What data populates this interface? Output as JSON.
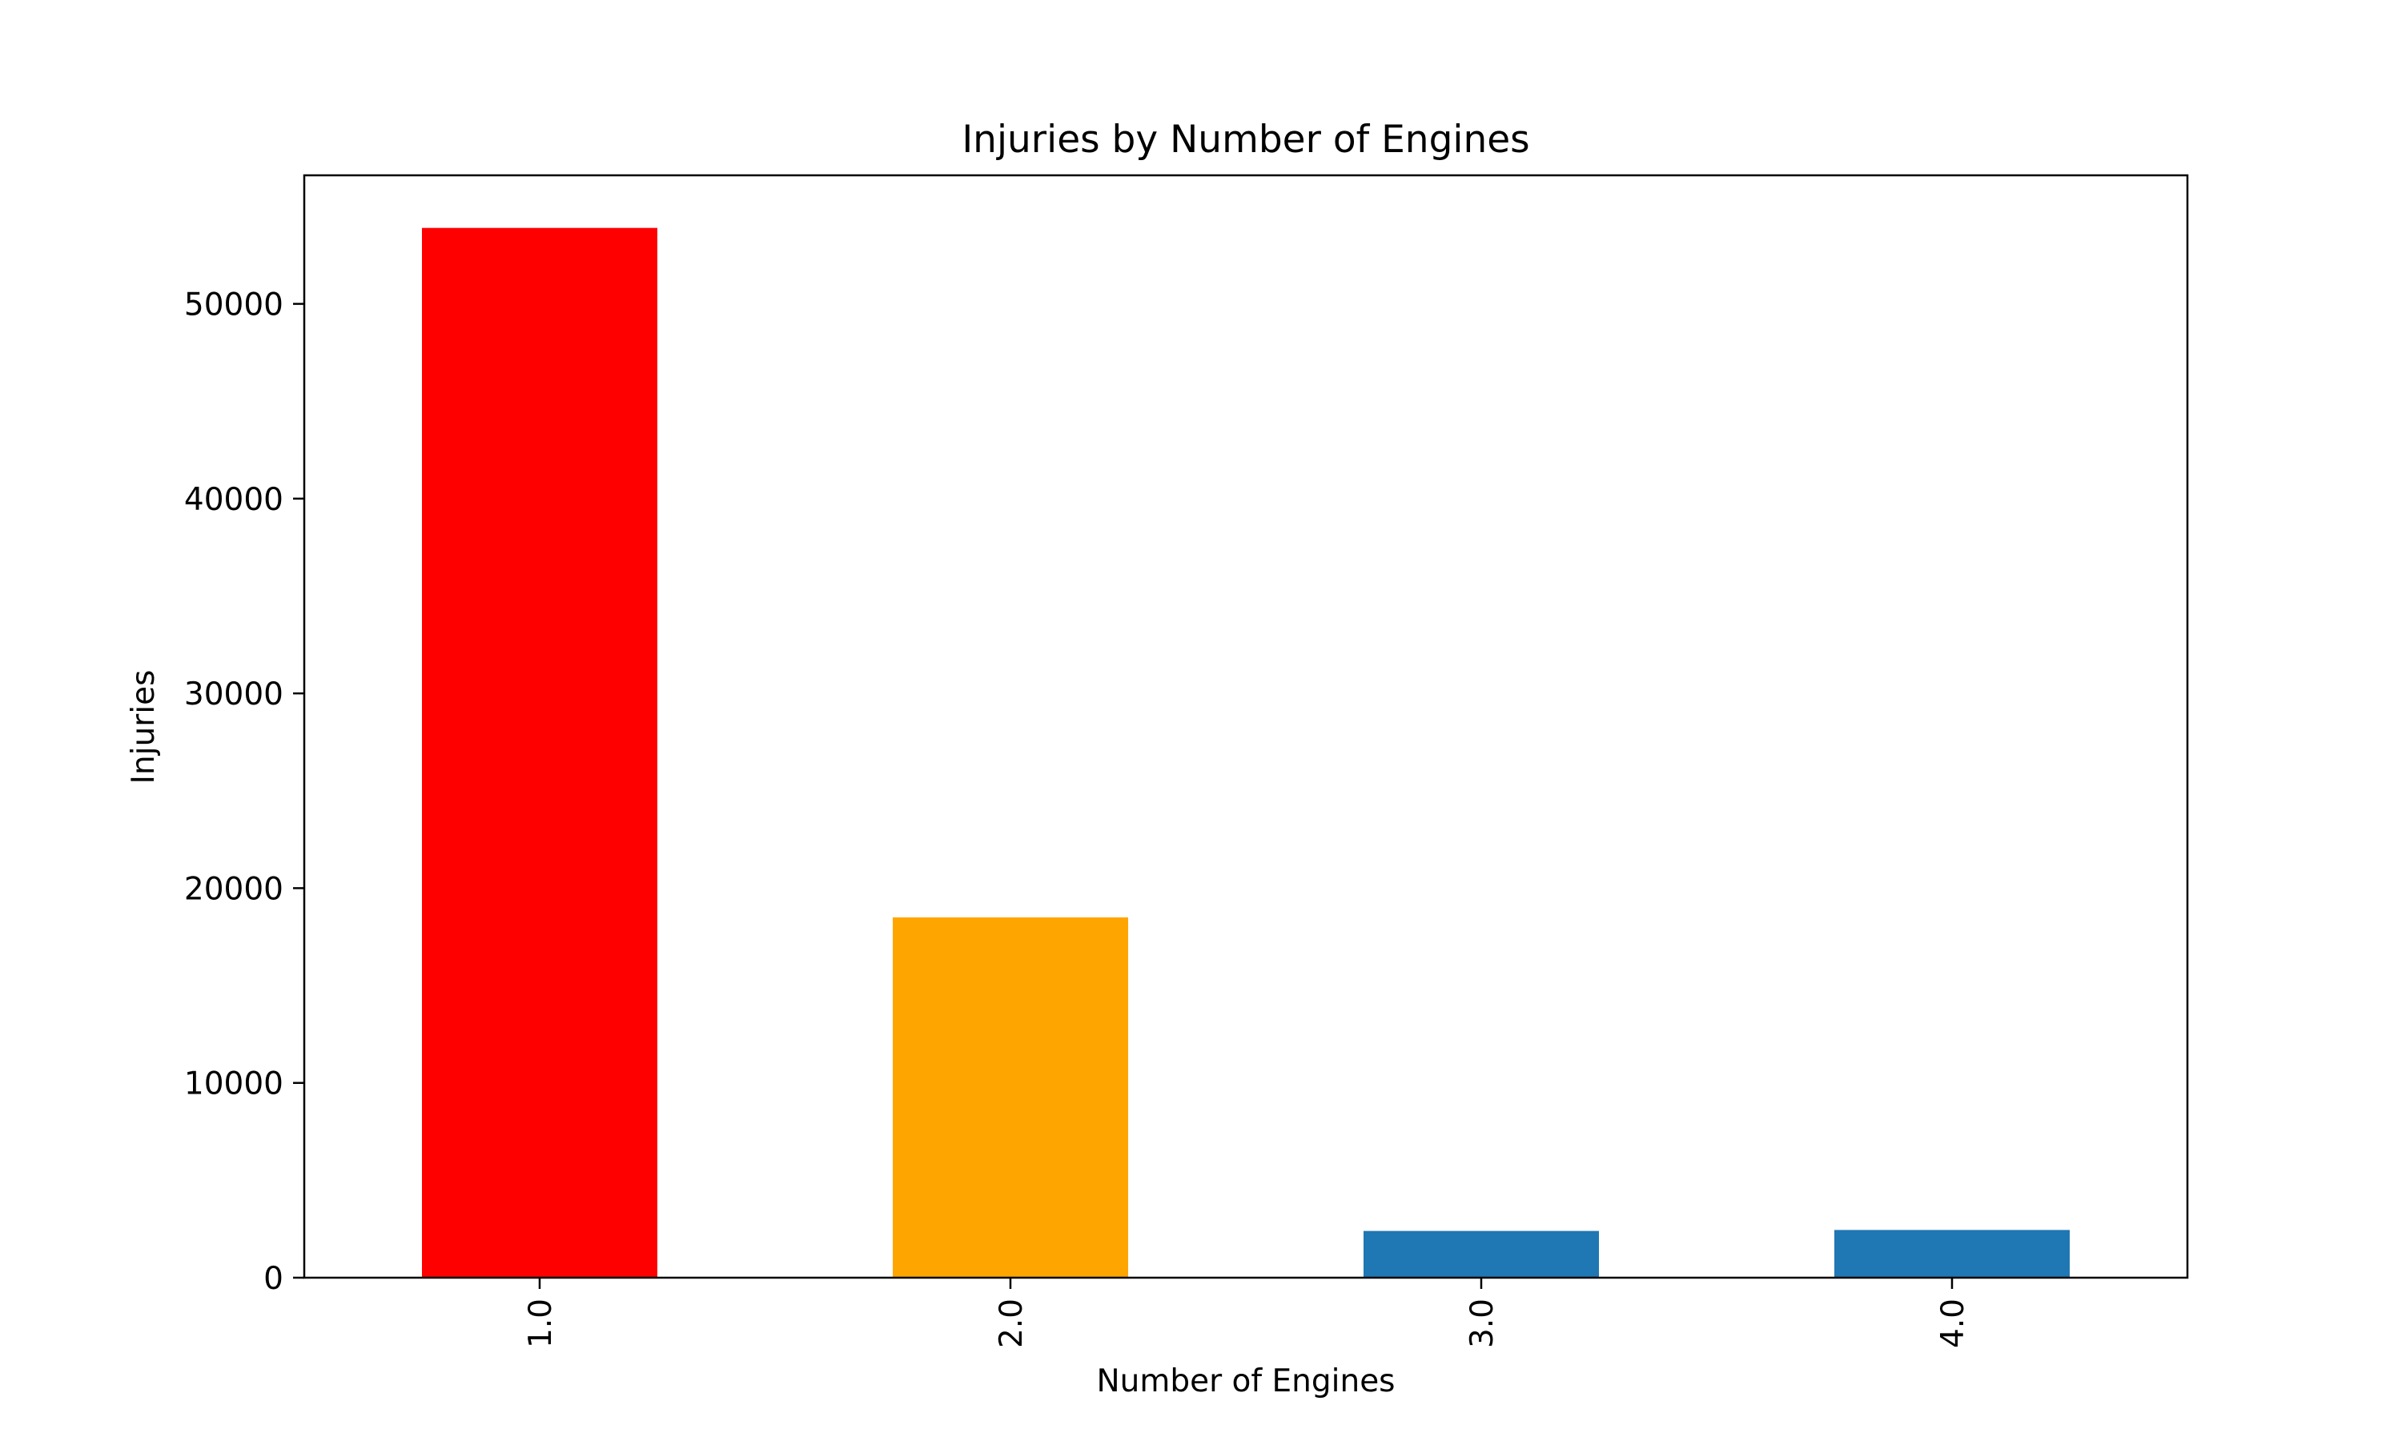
{
  "chart_data": {
    "type": "bar",
    "title": "Injuries by Number of Engines",
    "xlabel": "Number of Engines",
    "ylabel": "Injuries",
    "categories": [
      "1.0",
      "2.0",
      "3.0",
      "4.0"
    ],
    "values": [
      53900,
      18500,
      2400,
      2450
    ],
    "colors": [
      "#ff0000",
      "#ffa500",
      "#1f77b4",
      "#1f77b4"
    ],
    "ylim": [
      0,
      56600
    ],
    "yticks": [
      0,
      10000,
      20000,
      30000,
      40000,
      50000
    ],
    "ytick_labels": [
      "0",
      "10000",
      "20000",
      "30000",
      "40000",
      "50000"
    ],
    "xtick_rotation": "vertical",
    "grid": false,
    "legend": "none"
  }
}
